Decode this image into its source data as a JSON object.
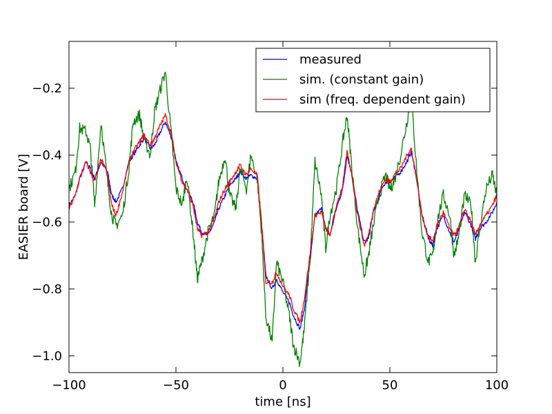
{
  "chart_data": {
    "type": "line",
    "xlabel": "time [ns]",
    "ylabel": "EASIER board [V]",
    "xlim": [
      -100,
      100
    ],
    "ylim": [
      -1.05,
      -0.06
    ],
    "xticks": [
      -100,
      -50,
      0,
      50,
      100
    ],
    "xtick_labels": [
      "−100",
      "−50",
      "0",
      "50",
      "100"
    ],
    "yticks": [
      -1.0,
      -0.8,
      -0.6,
      -0.4,
      -0.2
    ],
    "ytick_labels": [
      "−1.0",
      "−0.8",
      "−0.6",
      "−0.4",
      "−0.2"
    ],
    "grid": false,
    "legend_position": "top-right",
    "series": [
      {
        "name": "measured",
        "color": "#0000ff",
        "x": [
          -100,
          -97,
          -95,
          -92,
          -90,
          -88,
          -85,
          -82,
          -80,
          -78,
          -75,
          -72,
          -70,
          -67,
          -65,
          -62,
          -60,
          -58,
          -55,
          -52,
          -50,
          -47,
          -45,
          -42,
          -40,
          -38,
          -35,
          -32,
          -30,
          -27,
          -25,
          -22,
          -20,
          -17,
          -15,
          -12,
          -10,
          -8,
          -5,
          -3,
          0,
          3,
          5,
          8,
          10,
          13,
          15,
          18,
          20,
          22,
          25,
          28,
          30,
          32,
          35,
          38,
          40,
          42,
          45,
          48,
          50,
          52,
          55,
          58,
          60,
          62,
          65,
          68,
          70,
          72,
          75,
          78,
          80,
          82,
          85,
          88,
          90,
          92,
          95,
          98,
          100
        ],
        "y": [
          -0.55,
          -0.52,
          -0.47,
          -0.42,
          -0.44,
          -0.47,
          -0.42,
          -0.45,
          -0.52,
          -0.54,
          -0.5,
          -0.42,
          -0.4,
          -0.37,
          -0.35,
          -0.38,
          -0.37,
          -0.34,
          -0.3,
          -0.35,
          -0.42,
          -0.47,
          -0.5,
          -0.54,
          -0.6,
          -0.63,
          -0.64,
          -0.6,
          -0.56,
          -0.52,
          -0.49,
          -0.47,
          -0.45,
          -0.47,
          -0.46,
          -0.47,
          -0.6,
          -0.76,
          -0.8,
          -0.77,
          -0.81,
          -0.84,
          -0.88,
          -0.92,
          -0.86,
          -0.7,
          -0.58,
          -0.56,
          -0.62,
          -0.64,
          -0.56,
          -0.5,
          -0.4,
          -0.45,
          -0.57,
          -0.66,
          -0.65,
          -0.58,
          -0.52,
          -0.48,
          -0.48,
          -0.47,
          -0.45,
          -0.42,
          -0.39,
          -0.45,
          -0.58,
          -0.65,
          -0.67,
          -0.62,
          -0.58,
          -0.63,
          -0.66,
          -0.63,
          -0.57,
          -0.61,
          -0.65,
          -0.62,
          -0.6,
          -0.57,
          -0.54
        ]
      },
      {
        "name": "sim. (constant gain)",
        "color": "#008000",
        "x": [
          -100,
          -97,
          -95,
          -92,
          -90,
          -88,
          -85,
          -82,
          -80,
          -78,
          -75,
          -72,
          -70,
          -67,
          -65,
          -62,
          -60,
          -58,
          -55,
          -52,
          -50,
          -47,
          -45,
          -42,
          -40,
          -38,
          -35,
          -32,
          -30,
          -27,
          -25,
          -22,
          -20,
          -17,
          -15,
          -12,
          -10,
          -8,
          -5,
          -3,
          0,
          3,
          5,
          8,
          10,
          13,
          15,
          18,
          20,
          22,
          25,
          28,
          30,
          32,
          35,
          38,
          40,
          42,
          45,
          48,
          50,
          52,
          55,
          58,
          60,
          62,
          65,
          68,
          70,
          72,
          75,
          78,
          80,
          82,
          85,
          88,
          90,
          92,
          95,
          98,
          100
        ],
        "y": [
          -0.5,
          -0.45,
          -0.32,
          -0.33,
          -0.38,
          -0.55,
          -0.3,
          -0.48,
          -0.58,
          -0.61,
          -0.58,
          -0.44,
          -0.3,
          -0.28,
          -0.35,
          -0.4,
          -0.27,
          -0.22,
          -0.15,
          -0.35,
          -0.5,
          -0.55,
          -0.46,
          -0.63,
          -0.77,
          -0.72,
          -0.63,
          -0.58,
          -0.48,
          -0.4,
          -0.52,
          -0.56,
          -0.44,
          -0.5,
          -0.4,
          -0.47,
          -0.63,
          -0.88,
          -0.96,
          -0.72,
          -0.78,
          -0.88,
          -0.97,
          -1.02,
          -0.92,
          -0.68,
          -0.42,
          -0.52,
          -0.68,
          -0.58,
          -0.5,
          -0.36,
          -0.28,
          -0.42,
          -0.62,
          -0.76,
          -0.7,
          -0.62,
          -0.52,
          -0.46,
          -0.5,
          -0.48,
          -0.4,
          -0.3,
          -0.22,
          -0.4,
          -0.63,
          -0.72,
          -0.7,
          -0.6,
          -0.52,
          -0.58,
          -0.7,
          -0.65,
          -0.52,
          -0.55,
          -0.72,
          -0.62,
          -0.5,
          -0.46,
          -0.52
        ]
      },
      {
        "name": "sim (freq. dependent gain)",
        "color": "#ff0000",
        "x": [
          -100,
          -97,
          -95,
          -92,
          -90,
          -88,
          -85,
          -82,
          -80,
          -78,
          -75,
          -72,
          -70,
          -67,
          -65,
          -62,
          -60,
          -58,
          -55,
          -52,
          -50,
          -47,
          -45,
          -42,
          -40,
          -38,
          -35,
          -32,
          -30,
          -27,
          -25,
          -22,
          -20,
          -17,
          -15,
          -12,
          -10,
          -8,
          -5,
          -3,
          0,
          3,
          5,
          8,
          10,
          13,
          15,
          18,
          20,
          22,
          25,
          28,
          30,
          32,
          35,
          38,
          40,
          42,
          45,
          48,
          50,
          52,
          55,
          58,
          60,
          62,
          65,
          68,
          70,
          72,
          75,
          78,
          80,
          82,
          85,
          88,
          90,
          92,
          95,
          98,
          100
        ],
        "y": [
          -0.56,
          -0.52,
          -0.47,
          -0.42,
          -0.45,
          -0.48,
          -0.41,
          -0.46,
          -0.55,
          -0.58,
          -0.51,
          -0.42,
          -0.39,
          -0.36,
          -0.34,
          -0.37,
          -0.35,
          -0.32,
          -0.28,
          -0.34,
          -0.42,
          -0.48,
          -0.5,
          -0.55,
          -0.62,
          -0.64,
          -0.63,
          -0.59,
          -0.54,
          -0.5,
          -0.48,
          -0.45,
          -0.43,
          -0.46,
          -0.44,
          -0.46,
          -0.6,
          -0.78,
          -0.78,
          -0.75,
          -0.79,
          -0.82,
          -0.86,
          -0.9,
          -0.83,
          -0.68,
          -0.58,
          -0.57,
          -0.62,
          -0.64,
          -0.55,
          -0.49,
          -0.39,
          -0.45,
          -0.58,
          -0.67,
          -0.64,
          -0.57,
          -0.51,
          -0.47,
          -0.48,
          -0.46,
          -0.44,
          -0.4,
          -0.38,
          -0.45,
          -0.58,
          -0.64,
          -0.66,
          -0.61,
          -0.57,
          -0.62,
          -0.64,
          -0.62,
          -0.56,
          -0.6,
          -0.64,
          -0.61,
          -0.58,
          -0.55,
          -0.52
        ]
      }
    ]
  }
}
